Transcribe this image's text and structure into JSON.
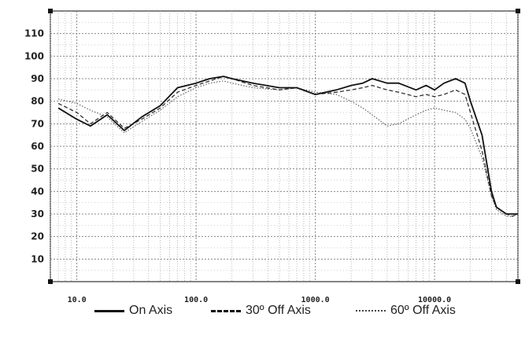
{
  "chart_data": {
    "type": "line",
    "x_scale": "log",
    "xlim": [
      6,
      50000
    ],
    "ylim": [
      0,
      120
    ],
    "grid": true,
    "y_ticks": [
      "110",
      "100",
      "90",
      "80",
      "70",
      "60",
      "50",
      "40",
      "30",
      "20",
      "10"
    ],
    "y_tick_values": [
      110,
      100,
      90,
      80,
      70,
      60,
      50,
      40,
      30,
      20,
      10
    ],
    "x_ticks": [
      "10.0",
      "100.0",
      "1000.0",
      "10000.0"
    ],
    "x_tick_values": [
      10,
      100,
      1000,
      10000
    ],
    "legend_position": "bottom",
    "series": [
      {
        "name": "On Axis",
        "style": "solid",
        "x": [
          7,
          10,
          13,
          18,
          25,
          35,
          50,
          70,
          100,
          130,
          170,
          200,
          300,
          500,
          700,
          1000,
          1500,
          2000,
          2500,
          3000,
          4000,
          5000,
          7000,
          8500,
          10000,
          12000,
          15000,
          18000,
          20000,
          25000,
          30000,
          33000,
          40000,
          45000,
          50000
        ],
        "y": [
          77,
          72,
          69,
          74,
          67,
          73,
          78,
          86,
          88,
          90,
          91,
          90,
          88,
          86,
          86,
          83,
          85,
          87,
          88,
          90,
          88,
          88,
          85,
          87,
          85,
          88,
          90,
          88,
          80,
          65,
          40,
          33,
          30,
          30,
          30
        ]
      },
      {
        "name": "30º Off Axis",
        "style": "dashed",
        "x": [
          7,
          10,
          13,
          18,
          25,
          35,
          50,
          70,
          100,
          130,
          170,
          200,
          300,
          500,
          700,
          1000,
          1500,
          2000,
          2500,
          3000,
          4000,
          5000,
          7000,
          8500,
          10000,
          12000,
          15000,
          18000,
          20000,
          25000,
          30000,
          33000,
          40000,
          45000,
          50000
        ],
        "y": [
          79,
          75,
          70,
          75,
          68,
          72,
          77,
          84,
          87,
          89,
          91,
          90,
          87,
          85,
          86,
          83,
          84,
          85,
          86,
          87,
          85,
          84,
          82,
          83,
          82,
          83,
          85,
          83,
          75,
          58,
          38,
          33,
          30,
          29,
          30
        ]
      },
      {
        "name": "60º Off Axis",
        "style": "dotted",
        "x": [
          7,
          10,
          13,
          18,
          25,
          35,
          50,
          70,
          100,
          130,
          170,
          200,
          300,
          500,
          700,
          1000,
          1500,
          2000,
          2500,
          3000,
          4000,
          5000,
          7000,
          8500,
          10000,
          12000,
          15000,
          18000,
          20000,
          25000,
          30000,
          33000,
          40000,
          45000,
          50000
        ],
        "y": [
          81,
          79,
          76,
          73,
          66,
          71,
          76,
          82,
          86,
          88,
          89,
          88,
          86,
          85,
          86,
          84,
          83,
          80,
          77,
          74,
          69,
          70,
          74,
          76,
          77,
          76,
          75,
          72,
          68,
          55,
          38,
          32,
          29,
          29,
          30
        ]
      }
    ]
  }
}
